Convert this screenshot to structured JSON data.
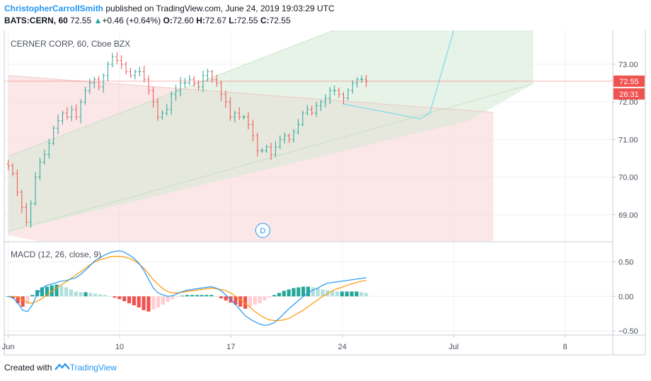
{
  "header": {
    "author": "ChristopherCarrollSmith",
    "published_text": "published on TradingView.com, June 24, 2019 19:03:29 UTC",
    "symbol_text": "BATS:CERN, 60",
    "last_value": "72.55",
    "change_arrow": "▲",
    "change_text": "+0.46 (+0.64%)",
    "o_label": "O:",
    "o_value": "72.60",
    "h_label": "H:",
    "h_value": "72.67",
    "l_label": "L:",
    "l_value": "72.55",
    "c_label": "C:",
    "c_value": "72.55"
  },
  "footer": {
    "created_with": "Created with",
    "brand": "TradingView"
  },
  "colors": {
    "up": "#26a69a",
    "down": "#ef5350",
    "macd_line": "#2196f3",
    "signal_line": "#ff9800",
    "price_label_bg": "#ef5350",
    "trend_green_fill": "#d5ead5",
    "trend_red_fill": "#f8d4d4",
    "projection_line": "#7fdde8"
  },
  "chart_data": [
    {
      "type": "candlestick",
      "title": "CERNER CORP, 60, Cboe BZX",
      "y_ticks": [
        "69.00",
        "70.00",
        "71.00",
        "72.00",
        "73.00"
      ],
      "ylim": [
        68.3,
        73.9
      ],
      "last_price_label": "72.55",
      "countdown_label": "26:31",
      "event_marker": "D",
      "x_ticks": [
        "Jun",
        "10",
        "17",
        "24",
        "Jul",
        "8"
      ],
      "x_tick_days": [
        3,
        10,
        17,
        24,
        31,
        38
      ],
      "xlim": [
        2.75,
        41.0
      ],
      "session_range": [
        3.0,
        25.5
      ],
      "closes": [
        70.3,
        70.1,
        69.6,
        69.2,
        68.8,
        69.3,
        70.0,
        70.4,
        70.6,
        70.9,
        71.3,
        71.5,
        71.7,
        71.6,
        71.8,
        71.6,
        72.0,
        72.3,
        72.5,
        72.6,
        72.4,
        72.7,
        73.0,
        73.2,
        73.1,
        73.0,
        72.8,
        72.7,
        72.8,
        72.8,
        72.6,
        72.3,
        72.0,
        71.6,
        71.7,
        71.8,
        72.2,
        72.3,
        72.5,
        72.5,
        72.6,
        72.5,
        72.4,
        72.7,
        72.8,
        72.6,
        72.5,
        72.2,
        72.0,
        71.6,
        71.7,
        71.6,
        71.6,
        71.4,
        71.1,
        70.7,
        70.7,
        70.8,
        70.6,
        70.8,
        71.0,
        71.1,
        71.0,
        71.2,
        71.4,
        71.7,
        71.8,
        71.7,
        71.9,
        72.0,
        72.1,
        72.3,
        72.3,
        72.2,
        72.1,
        72.3,
        72.5,
        72.6,
        72.6,
        72.55
      ],
      "green_channel_upper": [
        [
          3.0,
          70.55
        ],
        [
          32.0,
          75.3
        ],
        [
          36.0,
          75.75
        ]
      ],
      "green_channel_lower": [
        [
          3.0,
          68.55
        ],
        [
          32.0,
          71.5
        ],
        [
          36.0,
          72.48
        ]
      ],
      "red_channel_upper": [
        [
          3.0,
          72.7
        ],
        [
          33.5,
          71.72
        ]
      ],
      "red_channel_lower": [
        [
          3.0,
          68.45
        ],
        [
          33.5,
          66.0
        ]
      ],
      "projection_path": [
        [
          24.0,
          71.95
        ],
        [
          28.9,
          71.55
        ],
        [
          29.5,
          71.7
        ],
        [
          31.0,
          73.9
        ]
      ]
    },
    {
      "type": "macd",
      "title": "MACD (12, 26, close, 9)",
      "y_ticks": [
        "0.50",
        "0.00",
        "−0.50"
      ],
      "ylim": [
        -0.56,
        0.78
      ],
      "macd": [
        0.0,
        -0.02,
        -0.1,
        -0.2,
        -0.22,
        -0.12,
        0.03,
        0.12,
        0.16,
        0.18,
        0.2,
        0.22,
        0.23,
        0.25,
        0.27,
        0.32,
        0.38,
        0.45,
        0.52,
        0.56,
        0.6,
        0.63,
        0.65,
        0.66,
        0.64,
        0.6,
        0.55,
        0.48,
        0.38,
        0.25,
        0.12,
        0.05,
        0.02,
        0.0,
        0.01,
        0.04,
        0.07,
        0.09,
        0.1,
        0.11,
        0.12,
        0.13,
        0.14,
        0.12,
        0.08,
        0.02,
        -0.05,
        -0.12,
        -0.2,
        -0.28,
        -0.33,
        -0.37,
        -0.4,
        -0.42,
        -0.41,
        -0.38,
        -0.32,
        -0.25,
        -0.18,
        -0.12,
        -0.06,
        0.0,
        0.05,
        0.09,
        0.12,
        0.16,
        0.19,
        0.2,
        0.21,
        0.22,
        0.23,
        0.24,
        0.25,
        0.26,
        0.27
      ],
      "signal": [
        0.0,
        0.0,
        -0.01,
        -0.05,
        -0.09,
        -0.1,
        -0.07,
        -0.03,
        0.02,
        0.07,
        0.12,
        0.17,
        0.21,
        0.26,
        0.31,
        0.36,
        0.41,
        0.46,
        0.5,
        0.53,
        0.55,
        0.57,
        0.58,
        0.58,
        0.57,
        0.55,
        0.52,
        0.47,
        0.41,
        0.33,
        0.24,
        0.17,
        0.11,
        0.07,
        0.05,
        0.05,
        0.06,
        0.07,
        0.08,
        0.09,
        0.1,
        0.11,
        0.12,
        0.11,
        0.1,
        0.08,
        0.05,
        0.0,
        -0.05,
        -0.1,
        -0.16,
        -0.22,
        -0.27,
        -0.31,
        -0.34,
        -0.35,
        -0.35,
        -0.34,
        -0.32,
        -0.28,
        -0.24,
        -0.2,
        -0.15,
        -0.1,
        -0.05,
        0.0,
        0.04,
        0.08,
        0.11,
        0.13,
        0.16,
        0.18,
        0.2,
        0.22,
        0.23
      ],
      "histogram": [
        0.0,
        -0.03,
        -0.1,
        -0.15,
        -0.11,
        0.02,
        0.09,
        0.13,
        0.14,
        0.16,
        0.17,
        0.16,
        0.13,
        0.1,
        0.07,
        0.06,
        0.06,
        0.05,
        0.04,
        0.03,
        0.02,
        0.0,
        -0.02,
        -0.04,
        -0.07,
        -0.1,
        -0.13,
        -0.16,
        -0.2,
        -0.22,
        -0.19,
        -0.16,
        -0.12,
        -0.08,
        -0.04,
        -0.01,
        0.01,
        0.02,
        0.02,
        0.02,
        0.02,
        0.02,
        0.02,
        0.0,
        -0.03,
        -0.06,
        -0.09,
        -0.12,
        -0.15,
        -0.18,
        -0.15,
        -0.12,
        -0.1,
        -0.06,
        -0.02,
        0.02,
        0.05,
        0.08,
        0.1,
        0.12,
        0.13,
        0.14,
        0.14,
        0.13,
        0.12,
        0.1,
        0.09,
        0.08,
        0.07,
        0.07,
        0.07,
        0.07,
        0.07,
        0.06,
        0.05
      ]
    }
  ]
}
